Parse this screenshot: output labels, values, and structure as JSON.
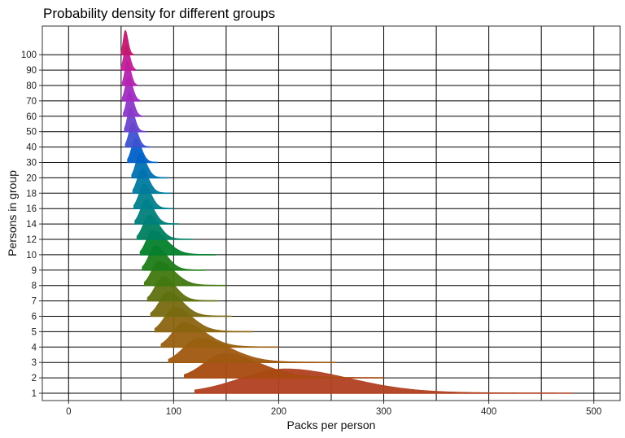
{
  "chart_data": {
    "type": "ridgeline",
    "title": "Probability density for different groups",
    "xlabel": "Packs per person",
    "ylabel": "Persons in group",
    "xlim": [
      -25,
      525
    ],
    "x_ticks": [
      0,
      100,
      200,
      300,
      400,
      500
    ],
    "x_tick_labels": [
      "0",
      "100",
      "200",
      "300",
      "400",
      "500"
    ],
    "x_gridlines": [
      0,
      50,
      100,
      150,
      200,
      250,
      300,
      350,
      400,
      450,
      500
    ],
    "grid": true,
    "legend": "none",
    "categories": [
      "1",
      "2",
      "3",
      "4",
      "5",
      "6",
      "7",
      "8",
      "9",
      "10",
      "12",
      "14",
      "16",
      "18",
      "20",
      "30",
      "40",
      "50",
      "60",
      "70",
      "80",
      "90",
      "100"
    ],
    "series": [
      {
        "group": "1",
        "mode": 207,
        "min": 120,
        "max": 480,
        "color": "#b04020"
      },
      {
        "group": "2",
        "mode": 148,
        "min": 110,
        "max": 300,
        "color": "#a84a10"
      },
      {
        "group": "3",
        "mode": 124,
        "min": 95,
        "max": 255,
        "color": "#a05810"
      },
      {
        "group": "4",
        "mode": 110,
        "min": 88,
        "max": 200,
        "color": "#986010"
      },
      {
        "group": "5",
        "mode": 101,
        "min": 82,
        "max": 175,
        "color": "#8a6410"
      },
      {
        "group": "6",
        "mode": 95,
        "min": 78,
        "max": 155,
        "color": "#786a10"
      },
      {
        "group": "7",
        "mode": 90,
        "min": 75,
        "max": 142,
        "color": "#5e7010"
      },
      {
        "group": "8",
        "mode": 86,
        "min": 72,
        "max": 150,
        "color": "#407810"
      },
      {
        "group": "9",
        "mode": 83,
        "min": 70,
        "max": 130,
        "color": "#1f7c18"
      },
      {
        "group": "10",
        "mode": 80,
        "min": 68,
        "max": 140,
        "color": "#057f2c"
      },
      {
        "group": "12",
        "mode": 77,
        "min": 65,
        "max": 118,
        "color": "#008060"
      },
      {
        "group": "14",
        "mode": 74,
        "min": 63,
        "max": 105,
        "color": "#00807a"
      },
      {
        "group": "16",
        "mode": 72,
        "min": 62,
        "max": 100,
        "color": "#007f8c"
      },
      {
        "group": "18",
        "mode": 70,
        "min": 61,
        "max": 98,
        "color": "#007a9c"
      },
      {
        "group": "20",
        "mode": 68,
        "min": 60,
        "max": 95,
        "color": "#0072b0"
      },
      {
        "group": "30",
        "mode": 64,
        "min": 56,
        "max": 85,
        "color": "#0060c8"
      },
      {
        "group": "40",
        "mode": 61,
        "min": 54,
        "max": 78,
        "color": "#3d52d0"
      },
      {
        "group": "50",
        "mode": 59,
        "min": 53,
        "max": 74,
        "color": "#6a44cc"
      },
      {
        "group": "60",
        "mode": 58,
        "min": 52,
        "max": 71,
        "color": "#8a38c8"
      },
      {
        "group": "70",
        "mode": 57,
        "min": 51,
        "max": 68,
        "color": "#a02cc0"
      },
      {
        "group": "80",
        "mode": 56,
        "min": 51,
        "max": 66,
        "color": "#b422b0"
      },
      {
        "group": "90",
        "mode": 55,
        "min": 50,
        "max": 64,
        "color": "#c01c98"
      },
      {
        "group": "100",
        "mode": 54,
        "min": 50,
        "max": 62,
        "color": "#c2186e"
      }
    ]
  }
}
